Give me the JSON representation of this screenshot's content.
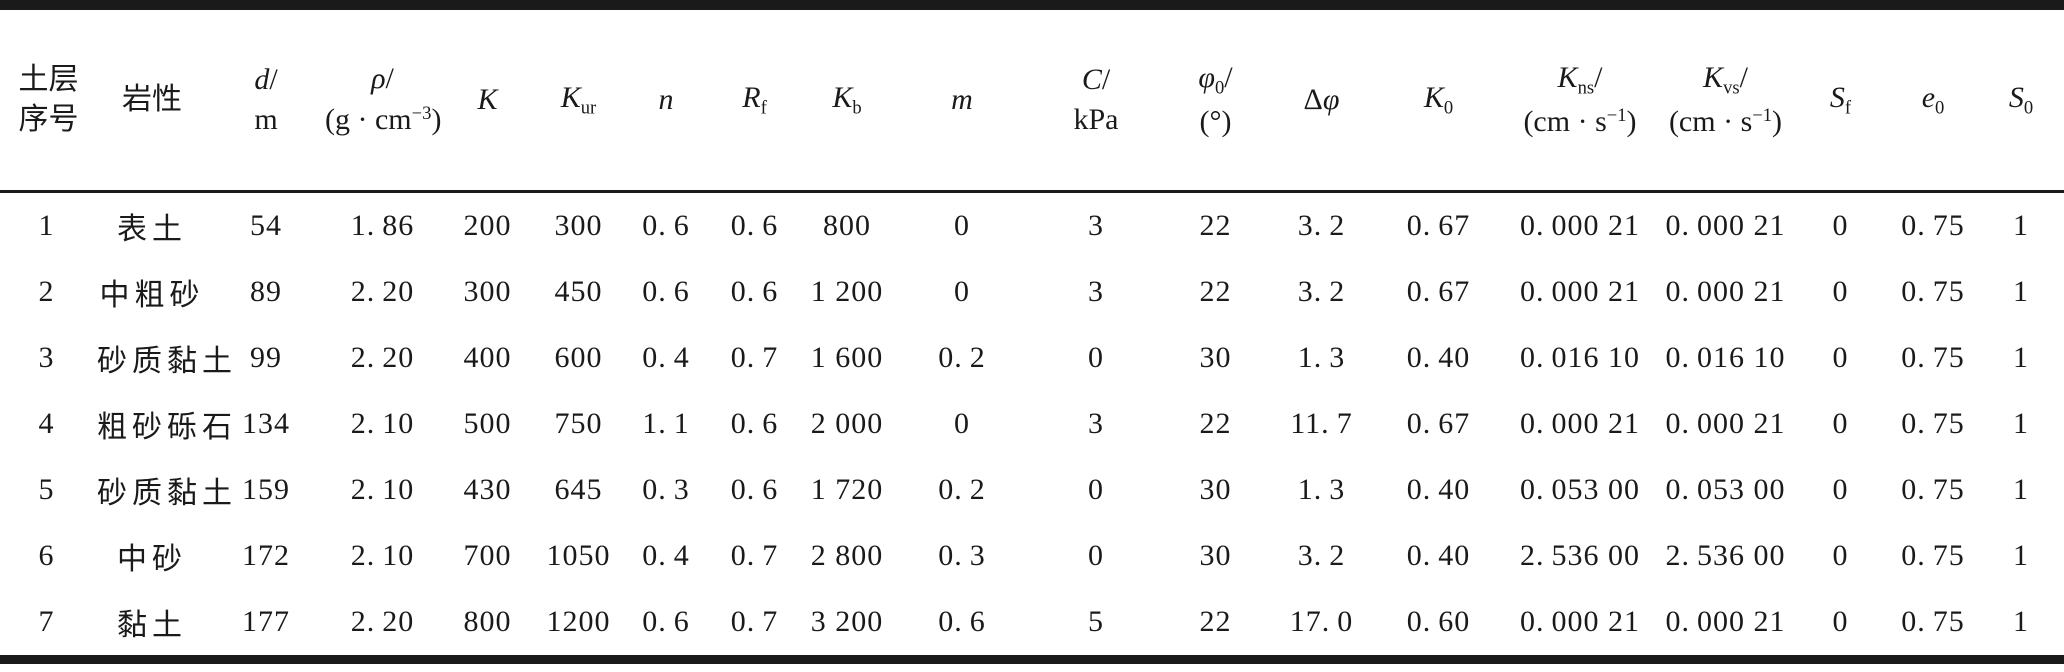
{
  "page": {
    "background": "#ffffff",
    "ink": "#1a1a1a"
  },
  "table": {
    "description": "soil layer material parameters table",
    "columns": [
      {
        "id": "layer-no",
        "cjk": true,
        "lines": [
          [
            {
              "t": "土层"
            }
          ],
          [
            {
              "t": "序号"
            }
          ]
        ]
      },
      {
        "id": "lithology",
        "cjk": true,
        "lines": [
          [
            {
              "t": "岩性"
            }
          ]
        ]
      },
      {
        "id": "d",
        "cjk": false,
        "lines": [
          [
            {
              "t": "d",
              "s": "i"
            },
            {
              "t": "/"
            }
          ],
          [
            {
              "t": "m"
            }
          ]
        ]
      },
      {
        "id": "rho",
        "cjk": false,
        "lines": [
          [
            {
              "t": "ρ",
              "s": "i"
            },
            {
              "t": "/"
            }
          ],
          [
            {
              "t": "(g · cm"
            },
            {
              "t": "−3",
              "s": "sup"
            },
            {
              "t": ")"
            }
          ]
        ]
      },
      {
        "id": "K",
        "cjk": false,
        "lines": [
          [
            {
              "t": "K",
              "s": "i"
            }
          ]
        ]
      },
      {
        "id": "Kur",
        "cjk": false,
        "lines": [
          [
            {
              "t": "K",
              "s": "i"
            },
            {
              "t": "ur",
              "s": "sub"
            }
          ]
        ]
      },
      {
        "id": "n",
        "cjk": false,
        "lines": [
          [
            {
              "t": "n",
              "s": "i"
            }
          ]
        ]
      },
      {
        "id": "Rf",
        "cjk": false,
        "lines": [
          [
            {
              "t": "R",
              "s": "i"
            },
            {
              "t": "f",
              "s": "sub"
            }
          ]
        ]
      },
      {
        "id": "Kb",
        "cjk": false,
        "lines": [
          [
            {
              "t": "K",
              "s": "i"
            },
            {
              "t": "b",
              "s": "sub"
            }
          ]
        ]
      },
      {
        "id": "m",
        "cjk": false,
        "lines": [
          [
            {
              "t": "m",
              "s": "i"
            }
          ]
        ]
      },
      {
        "id": "C",
        "cjk": false,
        "lines": [
          [
            {
              "t": "C",
              "s": "i"
            },
            {
              "t": "/"
            }
          ],
          [
            {
              "t": "kPa"
            }
          ]
        ]
      },
      {
        "id": "phi0",
        "cjk": false,
        "lines": [
          [
            {
              "t": "φ",
              "s": "i"
            },
            {
              "t": "0",
              "s": "sub"
            },
            {
              "t": "/"
            }
          ],
          [
            {
              "t": "(°)"
            }
          ]
        ]
      },
      {
        "id": "delta-phi",
        "cjk": false,
        "lines": [
          [
            {
              "t": "Δ"
            },
            {
              "t": "φ",
              "s": "i"
            }
          ]
        ]
      },
      {
        "id": "K0",
        "cjk": false,
        "lines": [
          [
            {
              "t": "K",
              "s": "i"
            },
            {
              "t": "0",
              "s": "sub"
            }
          ]
        ]
      },
      {
        "id": "Kns",
        "cjk": false,
        "lines": [
          [
            {
              "t": "K",
              "s": "i"
            },
            {
              "t": "ns",
              "s": "sub"
            },
            {
              "t": "/"
            }
          ],
          [
            {
              "t": "(cm · s"
            },
            {
              "t": "−1",
              "s": "sup"
            },
            {
              "t": ")"
            }
          ]
        ]
      },
      {
        "id": "Kvs",
        "cjk": false,
        "lines": [
          [
            {
              "t": "K",
              "s": "i"
            },
            {
              "t": "vs",
              "s": "sub"
            },
            {
              "t": "/"
            }
          ],
          [
            {
              "t": "(cm · s"
            },
            {
              "t": "−1",
              "s": "sup"
            },
            {
              "t": ")"
            }
          ]
        ]
      },
      {
        "id": "Sf",
        "cjk": false,
        "lines": [
          [
            {
              "t": "S",
              "s": "i"
            },
            {
              "t": "f",
              "s": "sub"
            }
          ]
        ]
      },
      {
        "id": "e0",
        "cjk": false,
        "lines": [
          [
            {
              "t": "e",
              "s": "i"
            },
            {
              "t": "0",
              "s": "sub"
            }
          ]
        ]
      },
      {
        "id": "S0",
        "cjk": false,
        "lines": [
          [
            {
              "t": "S",
              "s": "i"
            },
            {
              "t": "0",
              "s": "sub"
            }
          ]
        ]
      }
    ],
    "rows": [
      [
        "1",
        "表土",
        "54",
        "1.86",
        "200",
        "300",
        "0.6",
        "0.6",
        "800",
        "0",
        "3",
        "22",
        "3.2",
        "0.67",
        "0.000 21",
        "0.000 21",
        "0",
        "0.75",
        "1"
      ],
      [
        "2",
        "中粗砂",
        "89",
        "2.20",
        "300",
        "450",
        "0.6",
        "0.6",
        "1 200",
        "0",
        "3",
        "22",
        "3.2",
        "0.67",
        "0.000 21",
        "0.000 21",
        "0",
        "0.75",
        "1"
      ],
      [
        "3",
        "砂质黏土",
        "99",
        "2.20",
        "400",
        "600",
        "0.4",
        "0.7",
        "1 600",
        "0.2",
        "0",
        "30",
        "1.3",
        "0.40",
        "0.016 10",
        "0.016 10",
        "0",
        "0.75",
        "1"
      ],
      [
        "4",
        "粗砂砾石",
        "134",
        "2.10",
        "500",
        "750",
        "1.1",
        "0.6",
        "2 000",
        "0",
        "3",
        "22",
        "11.7",
        "0.67",
        "0.000 21",
        "0.000 21",
        "0",
        "0.75",
        "1"
      ],
      [
        "5",
        "砂质黏土",
        "159",
        "2.10",
        "430",
        "645",
        "0.3",
        "0.6",
        "1 720",
        "0.2",
        "0",
        "30",
        "1.3",
        "0.40",
        "0.053 00",
        "0.053 00",
        "0",
        "0.75",
        "1"
      ],
      [
        "6",
        "中砂",
        "172",
        "2.10",
        "700",
        "1050",
        "0.4",
        "0.7",
        "2 800",
        "0.3",
        "0",
        "30",
        "3.2",
        "0.40",
        "2.536 00",
        "2.536 00",
        "0",
        "0.75",
        "1"
      ],
      [
        "7",
        "黏土",
        "177",
        "2.20",
        "800",
        "1200",
        "0.6",
        "0.7",
        "3 200",
        "0.6",
        "5",
        "22",
        "17.0",
        "0.60",
        "0.000 21",
        "0.000 21",
        "0",
        "0.75",
        "1"
      ]
    ]
  }
}
